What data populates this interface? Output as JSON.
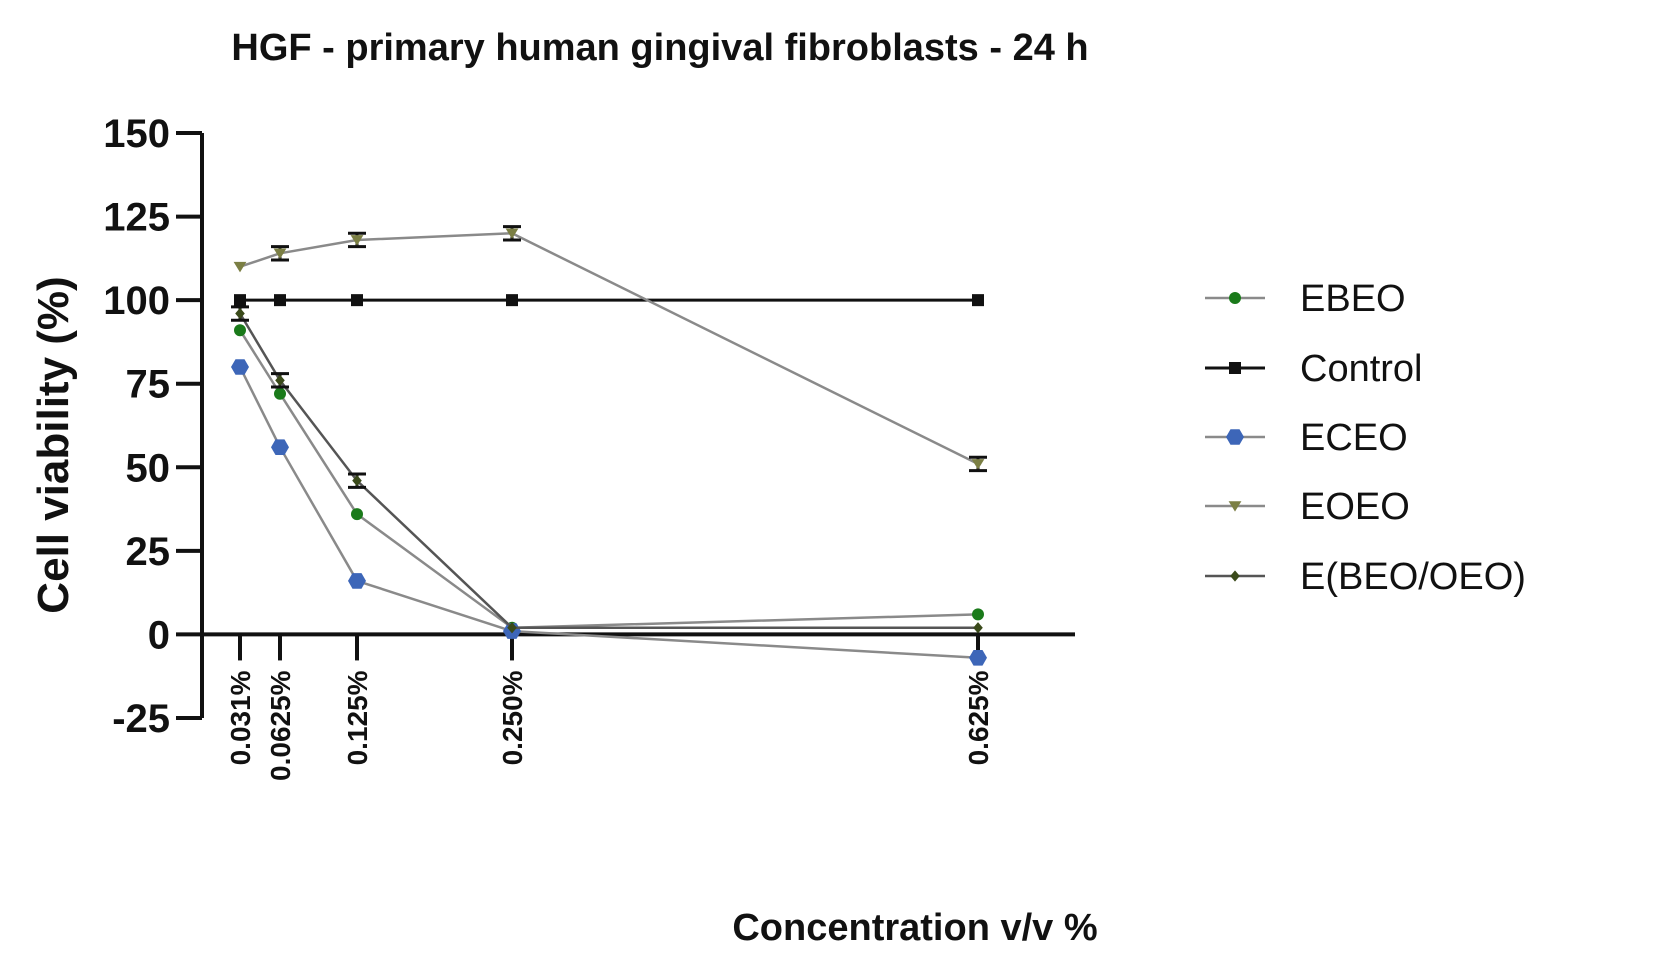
{
  "chart_data": {
    "type": "line",
    "title": "HGF - primary human gingival fibroblasts - 24 h",
    "xlabel": "Concentration v/v %",
    "ylabel": "Cell viability (%)",
    "ylim": [
      -25,
      150
    ],
    "yticks": [
      -25,
      0,
      25,
      50,
      75,
      100,
      125,
      150
    ],
    "x": [
      0.031,
      0.0625,
      0.125,
      0.25,
      0.625
    ],
    "xtick_labels": [
      "0.031%",
      "0.0625%",
      "0.125%",
      "0.250%",
      "0.625%"
    ],
    "legend_position": "right",
    "series": [
      {
        "name": "EBEO",
        "values": [
          91,
          72,
          36,
          2,
          6
        ],
        "errors": [
          0,
          0,
          0,
          0,
          0
        ],
        "color": "#1a7a1a",
        "line_color": "#8a8a8a",
        "marker": "circle"
      },
      {
        "name": "Control",
        "values": [
          100,
          100,
          100,
          100,
          100
        ],
        "errors": [
          0,
          0,
          0,
          0,
          0
        ],
        "color": "#111111",
        "line_color": "#111111",
        "marker": "square"
      },
      {
        "name": "ECEO",
        "values": [
          80,
          56,
          16,
          1,
          -7
        ],
        "errors": [
          0,
          0,
          0,
          0,
          0
        ],
        "color": "#3d66b8",
        "line_color": "#8a8a8a",
        "marker": "hexagon"
      },
      {
        "name": "EOEO",
        "values": [
          110,
          114,
          118,
          120,
          51
        ],
        "errors": [
          0,
          2,
          2,
          2,
          2
        ],
        "color": "#7b7f44",
        "line_color": "#8a8a8a",
        "marker": "triangle-down"
      },
      {
        "name": "E(BEO/OEO)",
        "values": [
          96,
          76,
          46,
          2,
          2
        ],
        "errors": [
          2,
          2,
          2,
          0,
          0
        ],
        "color": "#3a4a1a",
        "line_color": "#555555",
        "marker": "diamond"
      }
    ]
  }
}
